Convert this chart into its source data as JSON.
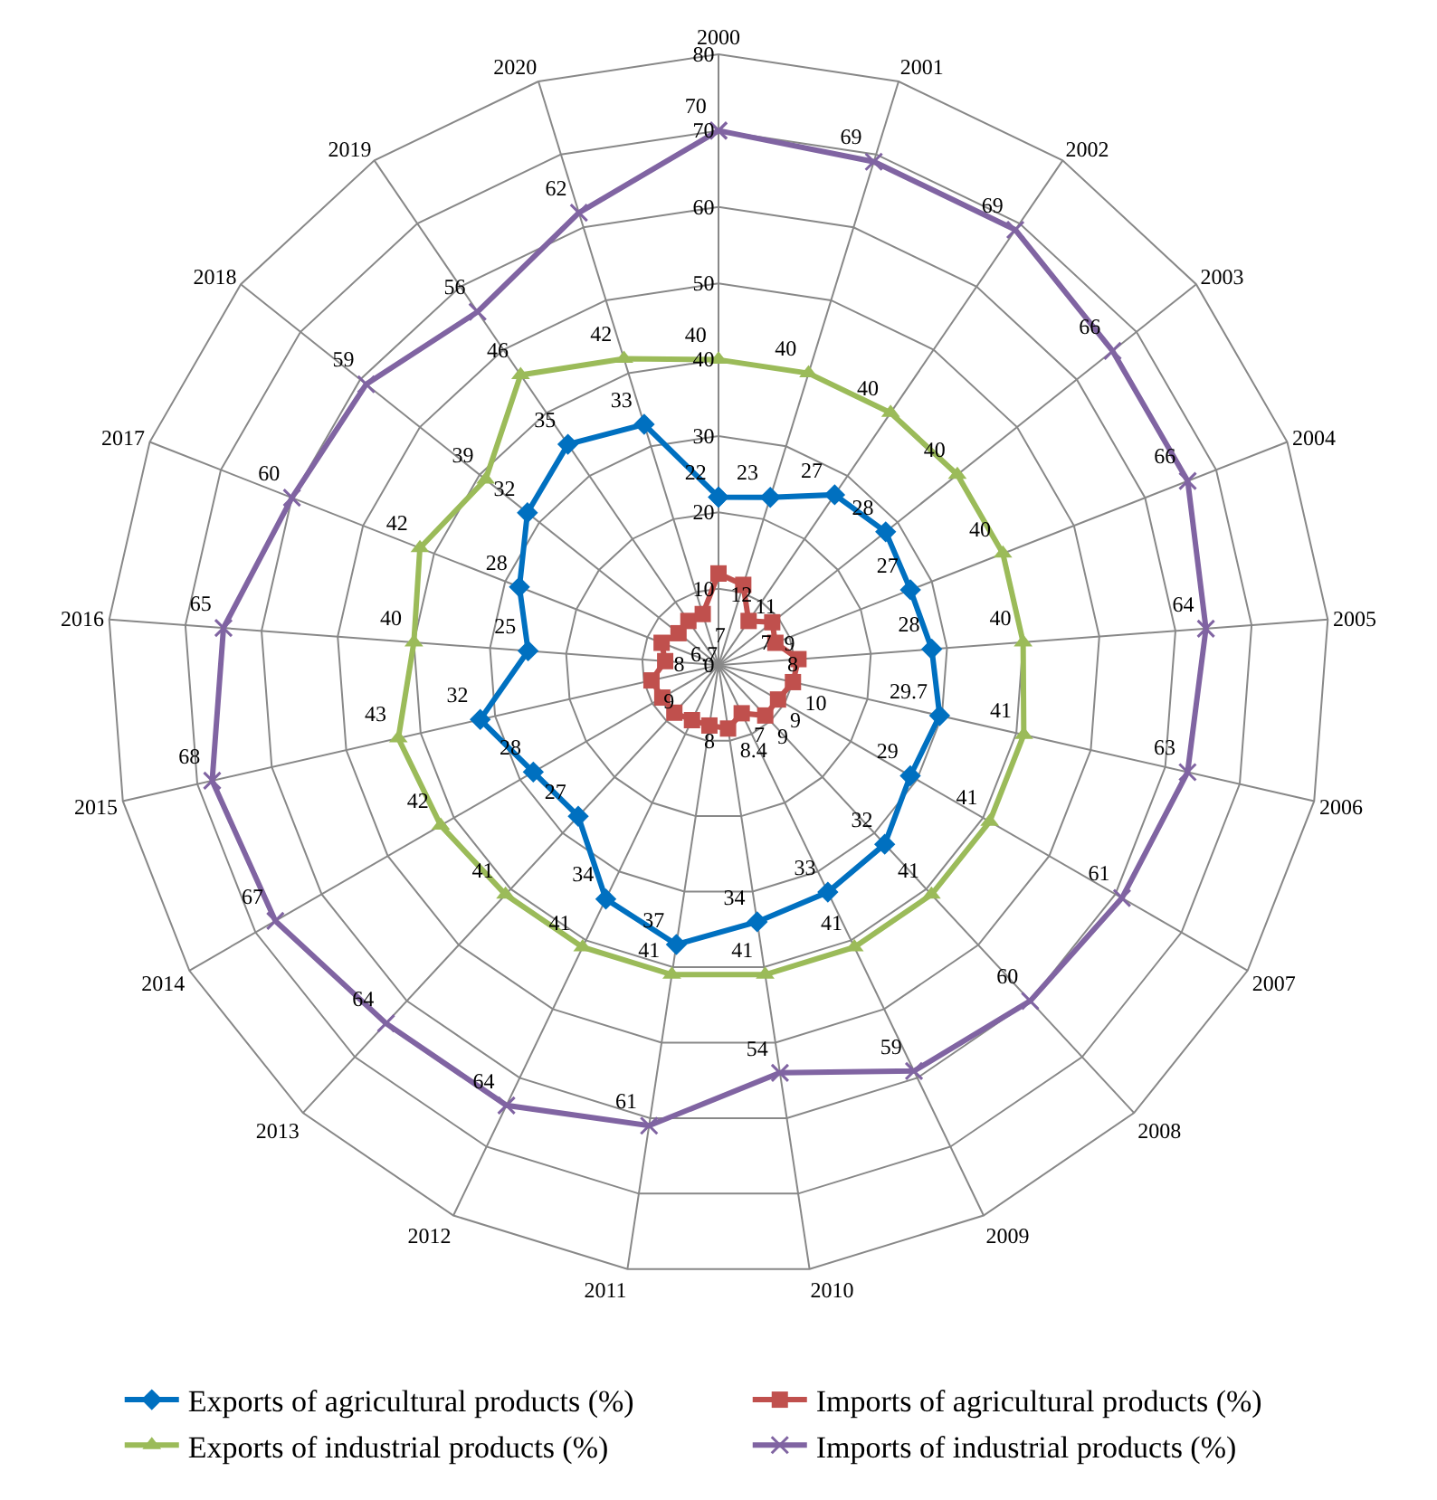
{
  "chart_data": {
    "type": "radar",
    "categories": [
      "2000",
      "2001",
      "2002",
      "2003",
      "2004",
      "2005",
      "2006",
      "2007",
      "2008",
      "2009",
      "2010",
      "2011",
      "2012",
      "2013",
      "2014",
      "2015",
      "2016",
      "2017",
      "2018",
      "2019",
      "2020"
    ],
    "ylim": [
      0,
      80
    ],
    "yticks": [
      0,
      10,
      20,
      30,
      40,
      50,
      60,
      70,
      80
    ],
    "grid": true,
    "legend": "bottom",
    "series": [
      {
        "name": "Exports of agricultural products (%)",
        "color": "#0070c0",
        "marker": "diamond",
        "values": [
          22,
          23,
          27,
          28,
          27,
          28,
          29.7,
          29,
          32,
          33,
          34,
          37,
          34,
          27,
          28,
          32,
          25,
          28,
          32,
          35,
          33
        ],
        "value_labels": [
          "22",
          "23",
          "27",
          "28",
          "27",
          "28",
          "29.7",
          "29",
          "32",
          "33",
          "34",
          "37",
          "34",
          "27",
          "28",
          "32",
          "25",
          "28",
          "32",
          "35",
          "33"
        ]
      },
      {
        "name": "Imports of agricultural products (%)",
        "color": "#c0504d",
        "marker": "square",
        "values": [
          12,
          11,
          7,
          9,
          8,
          10.5,
          10,
          9,
          9,
          7,
          8.4,
          8,
          8,
          8.5,
          8.5,
          9,
          7,
          8,
          6.7,
          7,
          7
        ],
        "value_labels": [
          "12",
          "11",
          "7",
          "9",
          "8",
          null,
          "10",
          "9",
          "9",
          "7",
          "8.4",
          null,
          "8",
          null,
          null,
          "9",
          null,
          "8",
          "6.7",
          null,
          "7"
        ]
      },
      {
        "name": "Exports of industrial products (%)",
        "color": "#9bbb59",
        "marker": "triangle",
        "values": [
          40,
          40,
          40,
          40,
          40,
          40,
          41,
          41,
          41,
          41,
          41,
          41,
          41,
          41,
          42,
          43,
          40,
          42,
          39,
          46,
          42
        ],
        "value_labels": [
          "40",
          "40",
          "40",
          "40",
          "40",
          "40",
          "41",
          "41",
          "41",
          "41",
          "41",
          "41",
          "41",
          "41",
          "42",
          "43",
          "40",
          "42",
          "39",
          "46",
          "42"
        ]
      },
      {
        "name": "Imports of industrial products (%)",
        "color": "#8064a2",
        "marker": "cross",
        "values": [
          70,
          69,
          69,
          66,
          66,
          64,
          63,
          61,
          60,
          59,
          54,
          61,
          64,
          64,
          67,
          68,
          65,
          60,
          59,
          56,
          62
        ],
        "value_labels": [
          "70",
          "69",
          "69",
          "66",
          "66",
          "64",
          "63",
          "61",
          "60",
          "59",
          "54",
          "61",
          "64",
          "64",
          "67",
          "68",
          "65",
          "60",
          "59",
          "56",
          "62"
        ]
      }
    ]
  }
}
